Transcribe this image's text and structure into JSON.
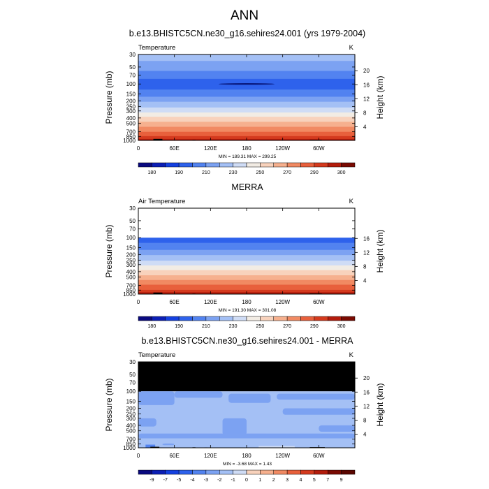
{
  "page_title": "ANN",
  "shared_axes": {
    "ylabel_left": "Pressure (mb)",
    "ylabel_right": "Height (km)",
    "pressure_ticks": [
      30,
      50,
      70,
      100,
      150,
      200,
      250,
      300,
      400,
      500,
      700,
      850,
      1000
    ],
    "pressure_range": [
      30,
      1000
    ],
    "lon_ticks": [
      {
        "lon": 0,
        "label": "0"
      },
      {
        "lon": 60,
        "label": "60E"
      },
      {
        "lon": 120,
        "label": "120E"
      },
      {
        "lon": 180,
        "label": "180"
      },
      {
        "lon": 240,
        "label": "120W"
      },
      {
        "lon": 300,
        "label": "60W"
      }
    ],
    "lon_range": [
      0,
      360
    ]
  },
  "panels": [
    {
      "id": "model",
      "title": "b.e13.BHISTC5CN.ne30_g16.sehires24.001 (yrs 1979-2004)",
      "left_label": "Temperature",
      "right_label": "K",
      "stats": "MIN = 189.31  MAX = 299.25",
      "height_ticks": [
        4,
        8,
        12,
        16,
        20
      ],
      "colorbar_labels": [
        "180",
        "190",
        "210",
        "230",
        "250",
        "270",
        "290",
        "300"
      ]
    },
    {
      "id": "obs",
      "title": "MERRA",
      "left_label": "Air Temperature",
      "right_label": "K",
      "stats": "MIN = 191.30  MAX = 301.08",
      "height_ticks": [
        4,
        8,
        12,
        16
      ],
      "colorbar_labels": [
        "180",
        "190",
        "210",
        "230",
        "250",
        "270",
        "290",
        "300"
      ]
    },
    {
      "id": "diff",
      "title": "b.e13.BHISTC5CN.ne30_g16.sehires24.001 - MERRA",
      "left_label": "Temperature",
      "right_label": "K",
      "stats": "MIN =  -3.68  MAX =   1.43",
      "height_ticks": [
        4,
        8,
        12,
        16,
        20
      ],
      "colorbar_labels": [
        "-9",
        "-7",
        "-5",
        "-4",
        "-3",
        "-2",
        "-1",
        "0",
        "1",
        "2",
        "3",
        "4",
        "5",
        "7",
        "9"
      ]
    }
  ],
  "colors": {
    "temp_scale": [
      "#0a0a80",
      "#0c1fb5",
      "#1440e0",
      "#2e62ec",
      "#5283f0",
      "#7ca2f2",
      "#a4c0f5",
      "#cfdcf5",
      "#f2ece4",
      "#f8d2bc",
      "#f6b08e",
      "#f18a63",
      "#e8603c",
      "#d43a1e",
      "#b31c0c",
      "#7a0a02"
    ],
    "diff_scale": [
      "#0a0a80",
      "#0c1fb5",
      "#1440e0",
      "#2e62ec",
      "#5283f0",
      "#7ca2f2",
      "#a4c0f5",
      "#cfdcf5",
      "#f8d2bc",
      "#f6b08e",
      "#f18a63",
      "#e8603c",
      "#d43a1e",
      "#b31c0c",
      "#7a0a02",
      "#5a0600"
    ],
    "masked": "#000000"
  },
  "chart_data": [
    {
      "type": "heatmap",
      "title": "b.e13.BHISTC5CN.ne30_g16.sehires24.001 (yrs 1979-2004)",
      "variable": "Temperature",
      "units": "K",
      "x": "longitude",
      "y": "pressure (mb)",
      "xlim": [
        0,
        360
      ],
      "ylim": [
        1000,
        30
      ],
      "contour_levels": [
        180,
        185,
        190,
        200,
        210,
        220,
        230,
        240,
        250,
        260,
        270,
        280,
        290,
        295,
        300
      ],
      "min": 189.31,
      "max": 299.25,
      "approx_profile_by_pressure": [
        {
          "p": 30,
          "T": 225
        },
        {
          "p": 50,
          "T": 215
        },
        {
          "p": 70,
          "T": 205
        },
        {
          "p": 100,
          "T": 193
        },
        {
          "p": 150,
          "T": 205
        },
        {
          "p": 200,
          "T": 218
        },
        {
          "p": 250,
          "T": 228
        },
        {
          "p": 300,
          "T": 237
        },
        {
          "p": 400,
          "T": 252
        },
        {
          "p": 500,
          "T": 263
        },
        {
          "p": 700,
          "T": 280
        },
        {
          "p": 850,
          "T": 290
        },
        {
          "p": 1000,
          "T": 298
        }
      ]
    },
    {
      "type": "heatmap",
      "title": "MERRA",
      "variable": "Air Temperature",
      "units": "K",
      "x": "longitude",
      "y": "pressure (mb)",
      "xlim": [
        0,
        360
      ],
      "ylim": [
        1000,
        30
      ],
      "contour_levels": [
        180,
        185,
        190,
        200,
        210,
        220,
        230,
        240,
        250,
        260,
        270,
        280,
        290,
        295,
        300
      ],
      "min": 191.3,
      "max": 301.08,
      "approx_profile_by_pressure": [
        {
          "p": 100,
          "T": 194
        },
        {
          "p": 150,
          "T": 206
        },
        {
          "p": 200,
          "T": 219
        },
        {
          "p": 250,
          "T": 229
        },
        {
          "p": 300,
          "T": 238
        },
        {
          "p": 400,
          "T": 253
        },
        {
          "p": 500,
          "T": 264
        },
        {
          "p": 700,
          "T": 281
        },
        {
          "p": 850,
          "T": 291
        },
        {
          "p": 1000,
          "T": 299
        }
      ]
    },
    {
      "type": "heatmap",
      "title": "b.e13.BHISTC5CN.ne30_g16.sehires24.001 - MERRA",
      "variable": "Temperature",
      "units": "K",
      "x": "longitude",
      "y": "pressure (mb)",
      "xlim": [
        0,
        360
      ],
      "ylim": [
        1000,
        30
      ],
      "contour_levels": [
        -9,
        -7,
        -5,
        -4,
        -3,
        -2,
        -1,
        0,
        1,
        2,
        3,
        4,
        5,
        7,
        9
      ],
      "min": -3.68,
      "max": 1.43
    }
  ]
}
